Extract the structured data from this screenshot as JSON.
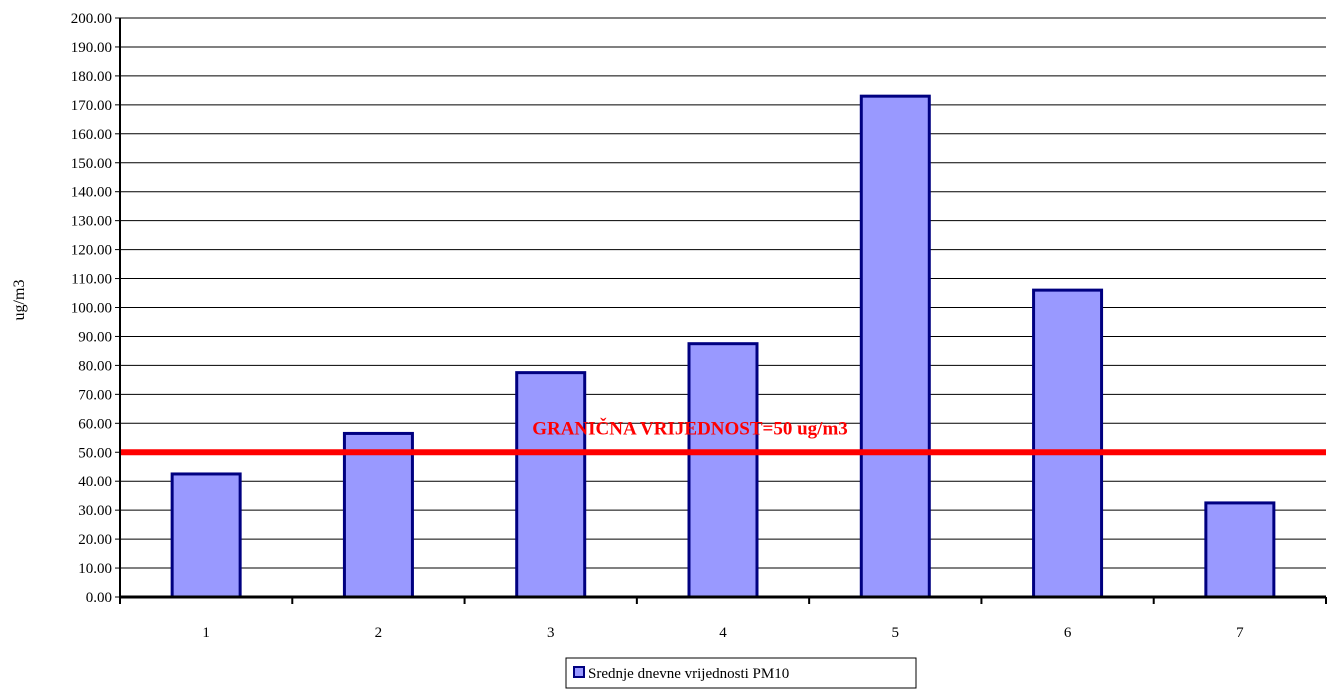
{
  "chart_data": {
    "type": "bar",
    "title": "",
    "xlabel": "",
    "ylabel": "ug/m3",
    "categories": [
      "1",
      "2",
      "3",
      "4",
      "5",
      "6",
      "7"
    ],
    "series": [
      {
        "name": "Srednje dnevne vrijednosti PM10",
        "values": [
          42.5,
          56.5,
          77.5,
          87.5,
          173.0,
          106.0,
          32.5
        ],
        "color": "#9999ff",
        "edge_color": "#000080"
      }
    ],
    "ylim": [
      0,
      200
    ],
    "ytick_step": 10,
    "ytick_labels": [
      "0.00",
      "10.00",
      "20.00",
      "30.00",
      "40.00",
      "50.00",
      "60.00",
      "70.00",
      "80.00",
      "90.00",
      "100.00",
      "110.00",
      "120.00",
      "130.00",
      "140.00",
      "150.00",
      "160.00",
      "170.00",
      "180.00",
      "190.00",
      "200.00"
    ],
    "grid": true,
    "legend_position": "bottom-center",
    "limit_line": {
      "value": 50,
      "label": "GRANIČNA VRIJEDNOST=50 ug/m3",
      "color": "#ff0000"
    }
  }
}
